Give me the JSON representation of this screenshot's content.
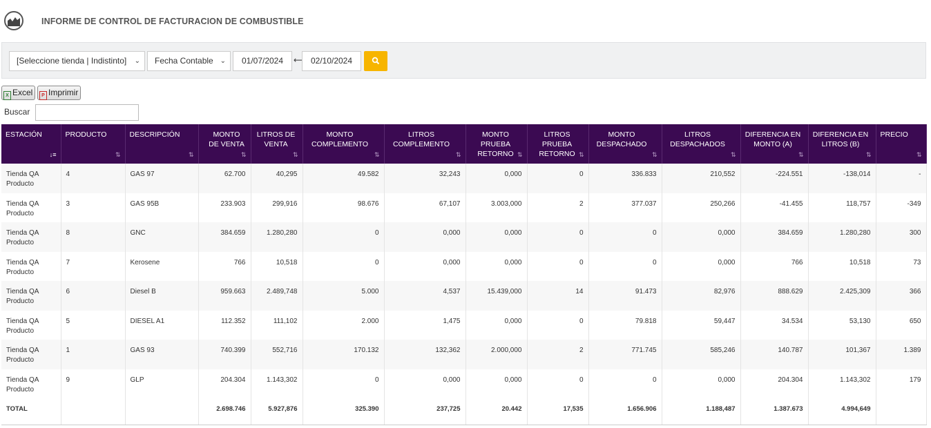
{
  "header": {
    "title": "INFORME DE CONTROL DE FACTURACION DE COMBUSTIBLE",
    "logo_icon": "chart-area-icon"
  },
  "filters": {
    "store_select": "[Seleccione tienda | Indistinto]",
    "date_type_select": "Fecha Contable",
    "date_from": "01/07/2024",
    "date_to": "02/10/2024",
    "range_arrow": "⟷",
    "search_icon": "search-icon",
    "accent_color": "#f7b500"
  },
  "toolbar": {
    "excel_label": "Excel",
    "print_label": "Imprimir",
    "search_label": "Buscar",
    "search_value": ""
  },
  "table": {
    "header_color": "#3b0a52",
    "columns": [
      {
        "label": "ESTACIÓN"
      },
      {
        "label": "PRODUCTO"
      },
      {
        "label": "DESCRIPCIÓN"
      },
      {
        "label": "MONTO DE VENTA"
      },
      {
        "label": "LITROS DE VENTA"
      },
      {
        "label": "MONTO COMPLEMENTO"
      },
      {
        "label": "LITROS COMPLEMENTO"
      },
      {
        "label": "MONTO PRUEBA RETORNO"
      },
      {
        "label": "LITROS PRUEBA RETORNO"
      },
      {
        "label": "MONTO DESPACHADO"
      },
      {
        "label": "LITROS DESPACHADOS"
      },
      {
        "label": "DIFERENCIA EN MONTO (A)"
      },
      {
        "label": "DIFERENCIA EN LITROS (B)"
      },
      {
        "label": "PRECIO"
      }
    ],
    "rows": [
      [
        "Tienda QA Producto",
        "4",
        "GAS 97",
        "62.700",
        "40,295",
        "49.582",
        "32,243",
        "0,000",
        "0",
        "336.833",
        "210,552",
        "-224.551",
        "-138,014",
        "-"
      ],
      [
        "Tienda QA Producto",
        "3",
        "GAS 95B",
        "233.903",
        "299,916",
        "98.676",
        "67,107",
        "3.003,000",
        "2",
        "377.037",
        "250,266",
        "-41.455",
        "118,757",
        "-349"
      ],
      [
        "Tienda QA Producto",
        "8",
        "GNC",
        "384.659",
        "1.280,280",
        "0",
        "0,000",
        "0,000",
        "0",
        "0",
        "0,000",
        "384.659",
        "1.280,280",
        "300"
      ],
      [
        "Tienda QA Producto",
        "7",
        "Kerosene",
        "766",
        "10,518",
        "0",
        "0,000",
        "0,000",
        "0",
        "0",
        "0,000",
        "766",
        "10,518",
        "73"
      ],
      [
        "Tienda QA Producto",
        "6",
        "Diesel B",
        "959.663",
        "2.489,748",
        "5.000",
        "4,537",
        "15.439,000",
        "14",
        "91.473",
        "82,976",
        "888.629",
        "2.425,309",
        "366"
      ],
      [
        "Tienda QA Producto",
        "5",
        "DIESEL A1",
        "112.352",
        "111,102",
        "2.000",
        "1,475",
        "0,000",
        "0",
        "79.818",
        "59,447",
        "34.534",
        "53,130",
        "650"
      ],
      [
        "Tienda QA Producto",
        "1",
        "GAS 93",
        "740.399",
        "552,716",
        "170.132",
        "132,362",
        "2.000,000",
        "2",
        "771.745",
        "585,246",
        "140.787",
        "101,367",
        "1.389"
      ],
      [
        "Tienda QA Producto",
        "9",
        "GLP",
        "204.304",
        "1.143,302",
        "0",
        "0,000",
        "0,000",
        "0",
        "0",
        "0,000",
        "204.304",
        "1.143,302",
        "179"
      ]
    ],
    "total": [
      "TOTAL",
      "",
      "",
      "2.698.746",
      "5.927,876",
      "325.390",
      "237,725",
      "20.442",
      "17,535",
      "1.656.906",
      "1.188,487",
      "1.387.673",
      "4.994,649",
      ""
    ]
  }
}
